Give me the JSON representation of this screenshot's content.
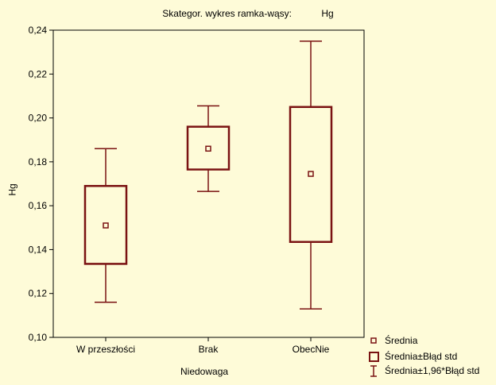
{
  "chart_data": {
    "type": "boxplot",
    "title": "Skategor. wykres ramka-wąsy:",
    "variable": "Hg",
    "xlabel": "Niedowaga",
    "ylabel": "Hg",
    "ylim": [
      0.1,
      0.24
    ],
    "yticks": [
      0.1,
      0.12,
      0.14,
      0.16,
      0.18,
      0.2,
      0.22,
      0.24
    ],
    "ytick_labels": [
      "0,10",
      "0,12",
      "0,14",
      "0,16",
      "0,18",
      "0,20",
      "0,22",
      "0,24"
    ],
    "categories": [
      "W przeszłości",
      "Brak",
      "ObecNie"
    ],
    "series": [
      {
        "category": "W przeszłości",
        "mean": 0.151,
        "box_low": 0.1335,
        "box_high": 0.169,
        "whisker_low": 0.116,
        "whisker_high": 0.186
      },
      {
        "category": "Brak",
        "mean": 0.186,
        "box_low": 0.1765,
        "box_high": 0.196,
        "whisker_low": 0.1665,
        "whisker_high": 0.2055
      },
      {
        "category": "ObecNie",
        "mean": 0.1745,
        "box_low": 0.1435,
        "box_high": 0.205,
        "whisker_low": 0.113,
        "whisker_high": 0.235
      }
    ],
    "legend": {
      "placement": "bottom-right",
      "items": [
        "Średnia",
        "Średnia±Błąd std",
        "Średnia±1,96*Błąd std"
      ]
    },
    "colors": {
      "series": "#7a1212",
      "background": "#fefbd8",
      "axis": "#000000"
    }
  }
}
